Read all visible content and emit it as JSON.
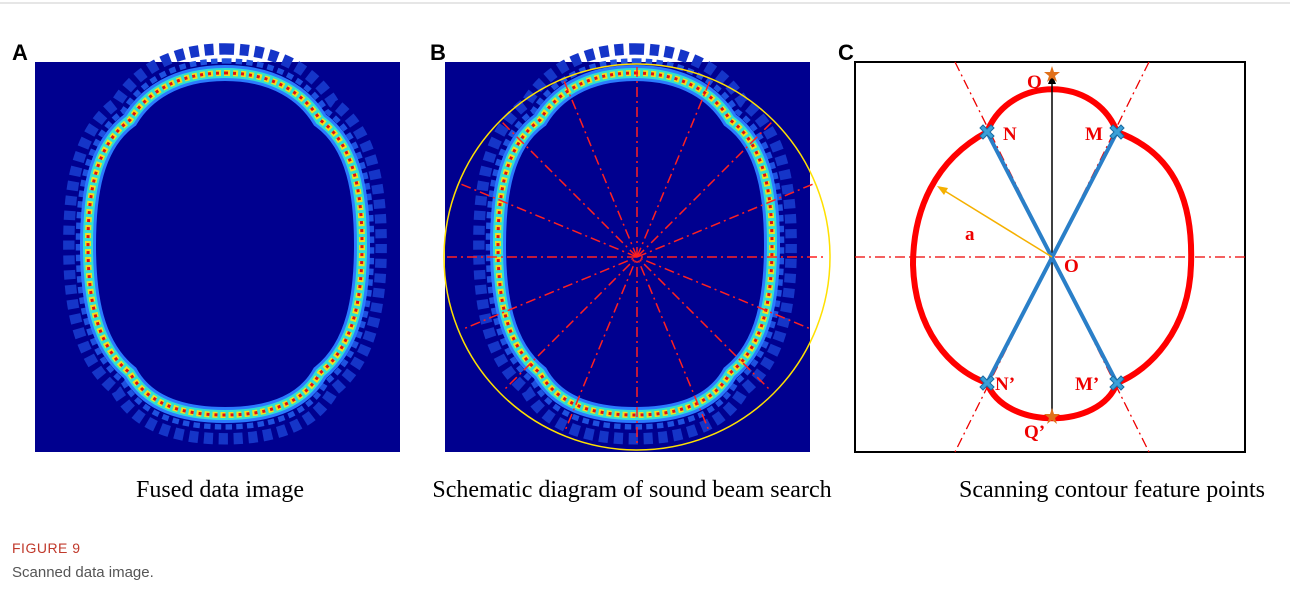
{
  "panels": [
    {
      "label": "A",
      "caption": "Fused data image"
    },
    {
      "label": "B",
      "caption": "Schematic diagram of sound beam search"
    },
    {
      "label": "C",
      "caption": "Scanning contour feature points",
      "points": [
        "Q",
        "N",
        "M",
        "O",
        "a",
        "N’",
        "M’",
        "Q’"
      ]
    }
  ],
  "figure": {
    "label": "FIGURE 9",
    "caption": "Scanned data image."
  }
}
